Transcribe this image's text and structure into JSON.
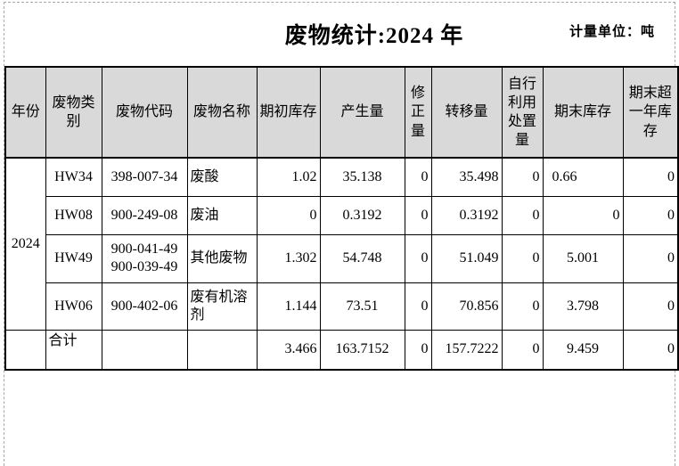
{
  "page": {
    "title": "废物统计:2024 年",
    "unit_label": "计量单位：吨"
  },
  "table": {
    "headers": [
      {
        "key": "year",
        "label": "年份"
      },
      {
        "key": "waste-category",
        "label": "废物类别"
      },
      {
        "key": "waste-code",
        "label": "废物代码"
      },
      {
        "key": "waste-name",
        "label": "废物名称"
      },
      {
        "key": "opening-stock",
        "label": "期初库存"
      },
      {
        "key": "generated-amount",
        "label": "产生量"
      },
      {
        "key": "correction-amount",
        "label": "修正量"
      },
      {
        "key": "transferred-amount",
        "label": "转移量"
      },
      {
        "key": "self-disposal-amount",
        "label": "自行利用处置量"
      },
      {
        "key": "closing-stock",
        "label": "期末库存"
      },
      {
        "key": "over-one-year-stock",
        "label": "期末超一年库存"
      }
    ],
    "year": "2024",
    "rows": [
      {
        "category": "HW34",
        "code": "398-007-34",
        "name": "废酸",
        "values": [
          {
            "v": "1.02",
            "align": "right"
          },
          {
            "v": "35.138",
            "align": "center"
          },
          {
            "v": "0",
            "align": "right"
          },
          {
            "v": "35.498",
            "align": "right"
          },
          {
            "v": "0",
            "align": "right"
          },
          {
            "v": "0.66",
            "align": "left"
          },
          {
            "v": "0",
            "align": "right"
          }
        ]
      },
      {
        "category": "HW08",
        "code": "900-249-08",
        "name": "废油",
        "values": [
          {
            "v": "0",
            "align": "right"
          },
          {
            "v": "0.3192",
            "align": "center"
          },
          {
            "v": "0",
            "align": "right"
          },
          {
            "v": "0.3192",
            "align": "right"
          },
          {
            "v": "0",
            "align": "right"
          },
          {
            "v": "0",
            "align": "right"
          },
          {
            "v": "0",
            "align": "right"
          }
        ]
      },
      {
        "category": "HW49",
        "code": "900-041-49\n900-039-49",
        "name": "其他废物",
        "values": [
          {
            "v": "1.302",
            "align": "right"
          },
          {
            "v": "54.748",
            "align": "center"
          },
          {
            "v": "0",
            "align": "right"
          },
          {
            "v": "51.049",
            "align": "right"
          },
          {
            "v": "0",
            "align": "right"
          },
          {
            "v": "5.001",
            "align": "center"
          },
          {
            "v": "0",
            "align": "right"
          }
        ]
      },
      {
        "category": "HW06",
        "code": "900-402-06",
        "name": "废有机溶剂",
        "values": [
          {
            "v": "1.144",
            "align": "right"
          },
          {
            "v": "73.51",
            "align": "center"
          },
          {
            "v": "0",
            "align": "right"
          },
          {
            "v": "70.856",
            "align": "right"
          },
          {
            "v": "0",
            "align": "right"
          },
          {
            "v": "3.798",
            "align": "center"
          },
          {
            "v": "0",
            "align": "right"
          }
        ]
      }
    ],
    "total_row": {
      "label": "合计",
      "values": [
        {
          "v": "3.466",
          "align": "right"
        },
        {
          "v": "163.7152",
          "align": "center"
        },
        {
          "v": "0",
          "align": "right"
        },
        {
          "v": "157.7222",
          "align": "right"
        },
        {
          "v": "0",
          "align": "right"
        },
        {
          "v": "9.459",
          "align": "center"
        },
        {
          "v": "0",
          "align": "right"
        }
      ]
    }
  }
}
